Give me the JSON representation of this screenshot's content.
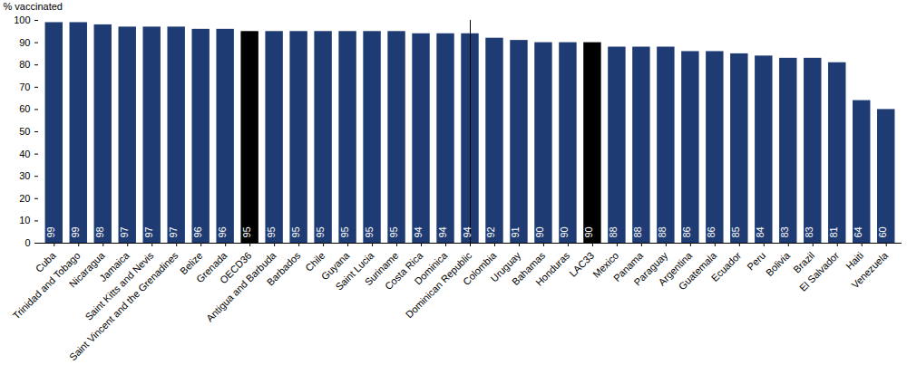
{
  "chart_data": {
    "type": "bar",
    "y_label": "% vaccinated",
    "categories": [
      "Cuba",
      "Trinidad and Tobago",
      "Nicaragua",
      "Jamaica",
      "Saint Kitts and Nevis",
      "Saint Vincent and the Grenadines",
      "Belize",
      "Grenada",
      "OECD36",
      "Antigua and Barbuda",
      "Barbados",
      "Chile",
      "Guyana",
      "Saint Lucia",
      "Suriname",
      "Costa Rica",
      "Dominica",
      "Dominican Republic",
      "Colombia",
      "Uruguay",
      "Bahamas",
      "Honduras",
      "LAC33",
      "Mexico",
      "Panama",
      "Paraguay",
      "Argentina",
      "Guatemala",
      "Ecuador",
      "Peru",
      "Bolivia",
      "Brazil",
      "El Salvador",
      "Haiti",
      "Venezuela"
    ],
    "values": [
      99,
      99,
      98,
      97,
      97,
      97,
      96,
      96,
      95,
      95,
      95,
      95,
      95,
      95,
      95,
      94,
      94,
      94,
      92,
      91,
      90,
      90,
      90,
      88,
      88,
      88,
      86,
      86,
      85,
      84,
      83,
      83,
      81,
      64,
      60
    ],
    "colors": [
      "#1f3b73",
      "#1f3b73",
      "#1f3b73",
      "#1f3b73",
      "#1f3b73",
      "#1f3b73",
      "#1f3b73",
      "#1f3b73",
      "#000000",
      "#1f3b73",
      "#1f3b73",
      "#1f3b73",
      "#1f3b73",
      "#1f3b73",
      "#1f3b73",
      "#1f3b73",
      "#1f3b73",
      "#1f3b73",
      "#1f3b73",
      "#1f3b73",
      "#1f3b73",
      "#1f3b73",
      "#000000",
      "#1f3b73",
      "#1f3b73",
      "#1f3b73",
      "#1f3b73",
      "#1f3b73",
      "#1f3b73",
      "#1f3b73",
      "#1f3b73",
      "#1f3b73",
      "#1f3b73",
      "#1f3b73",
      "#1f3b73"
    ],
    "ylim": [
      0,
      100
    ],
    "yticks": [
      0,
      10,
      20,
      30,
      40,
      50,
      60,
      70,
      80,
      90,
      100
    ],
    "grid": false,
    "data_labels": true
  }
}
